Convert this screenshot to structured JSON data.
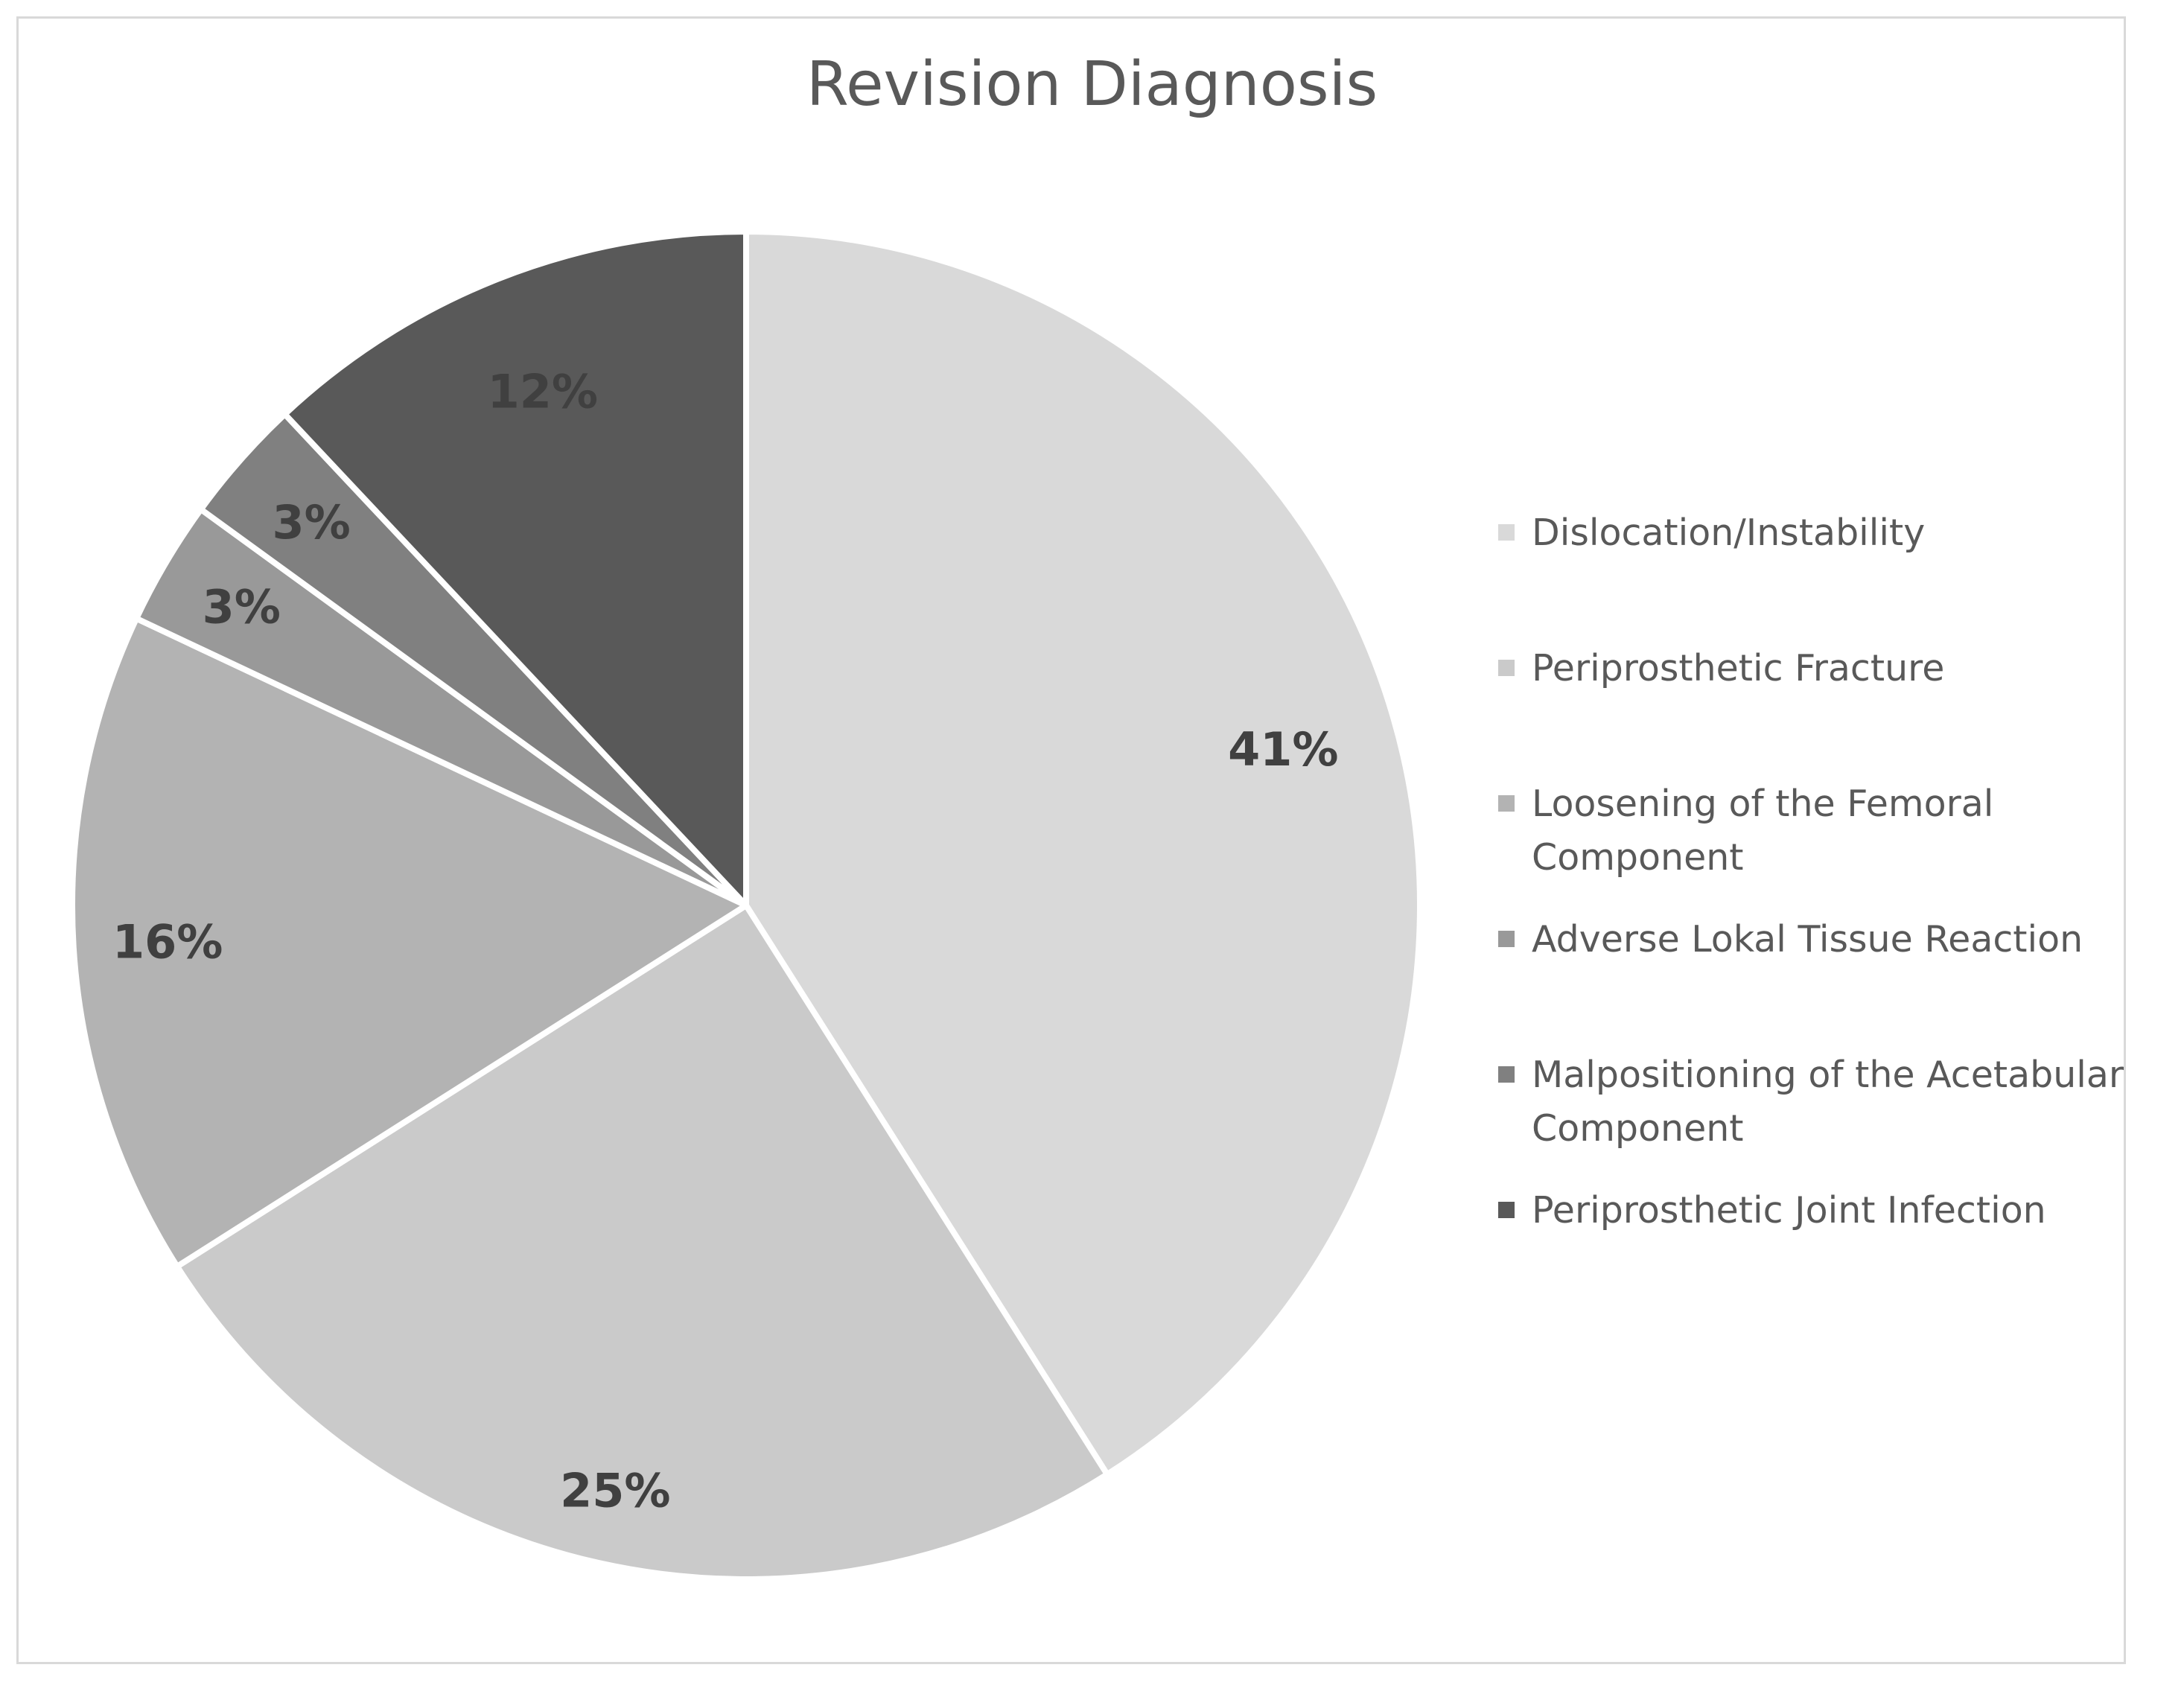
{
  "chart_data": {
    "type": "pie",
    "title": "Revision Diagnosis",
    "legend_position": "right",
    "slices": [
      {
        "label": "Dislocation/Instability",
        "value": 41,
        "value_label": "41%",
        "color": "#d9d9d9",
        "label_color": "#404040"
      },
      {
        "label": "Periprosthetic Fracture",
        "value": 25,
        "value_label": "25%",
        "color": "#cacaca",
        "label_color": "#404040"
      },
      {
        "label": "Loosening of the Femoral Component",
        "value": 16,
        "value_label": "16%",
        "color": "#b3b3b3",
        "label_color": "#404040"
      },
      {
        "label": "Adverse Lokal Tissue Reaction",
        "value": 3,
        "value_label": "3%",
        "color": "#999999",
        "label_color": "#404040"
      },
      {
        "label": "Malpositioning of the Acetabular Component",
        "value": 3,
        "value_label": "3%",
        "color": "#808080",
        "label_color": "#404040"
      },
      {
        "label": "Periprosthetic Joint Infection",
        "value": 12,
        "value_label": "12%",
        "color": "#595959",
        "label_color": "#404040"
      }
    ]
  }
}
